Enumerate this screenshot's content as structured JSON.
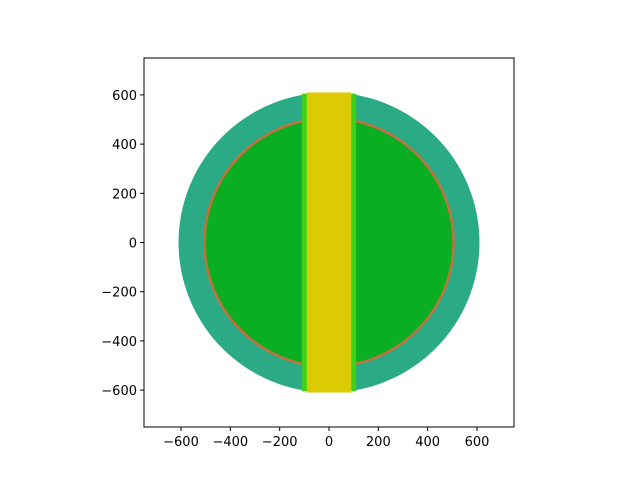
{
  "chart_data": {
    "type": "heatmap",
    "title": "",
    "xlabel": "",
    "ylabel": "",
    "xlim": [
      -750,
      750
    ],
    "ylim": [
      -750,
      750
    ],
    "xticks": [
      -600,
      -400,
      -200,
      0,
      200,
      400,
      600
    ],
    "yticks": [
      -600,
      -400,
      -200,
      0,
      200,
      400,
      600
    ],
    "xtick_labels": [
      "−600",
      "−400",
      "−200",
      "0",
      "200",
      "400",
      "600"
    ],
    "ytick_labels": [
      "−600",
      "−400",
      "−200",
      "0",
      "200",
      "400",
      "600"
    ],
    "grid": false,
    "regions": [
      {
        "kind": "disk",
        "id": "outer-ring",
        "cx": 0,
        "cy": 0,
        "r": 610,
        "color": "#2aab86"
      },
      {
        "kind": "disk",
        "id": "core-boundary",
        "cx": 0,
        "cy": 0,
        "r": 510,
        "color": "#c8703d"
      },
      {
        "kind": "disk",
        "id": "core-fill",
        "cx": 0,
        "cy": 0,
        "r": 500,
        "color": "#0aae22"
      },
      {
        "kind": "band",
        "id": "channel-edge",
        "x0": -110,
        "x1": 110,
        "y0": -605,
        "y1": 605,
        "color": "#3fd11a"
      },
      {
        "kind": "band",
        "id": "channel-fill",
        "x0": -90,
        "x1": 90,
        "y0": -610,
        "y1": 610,
        "color": "#dccb04"
      }
    ]
  }
}
